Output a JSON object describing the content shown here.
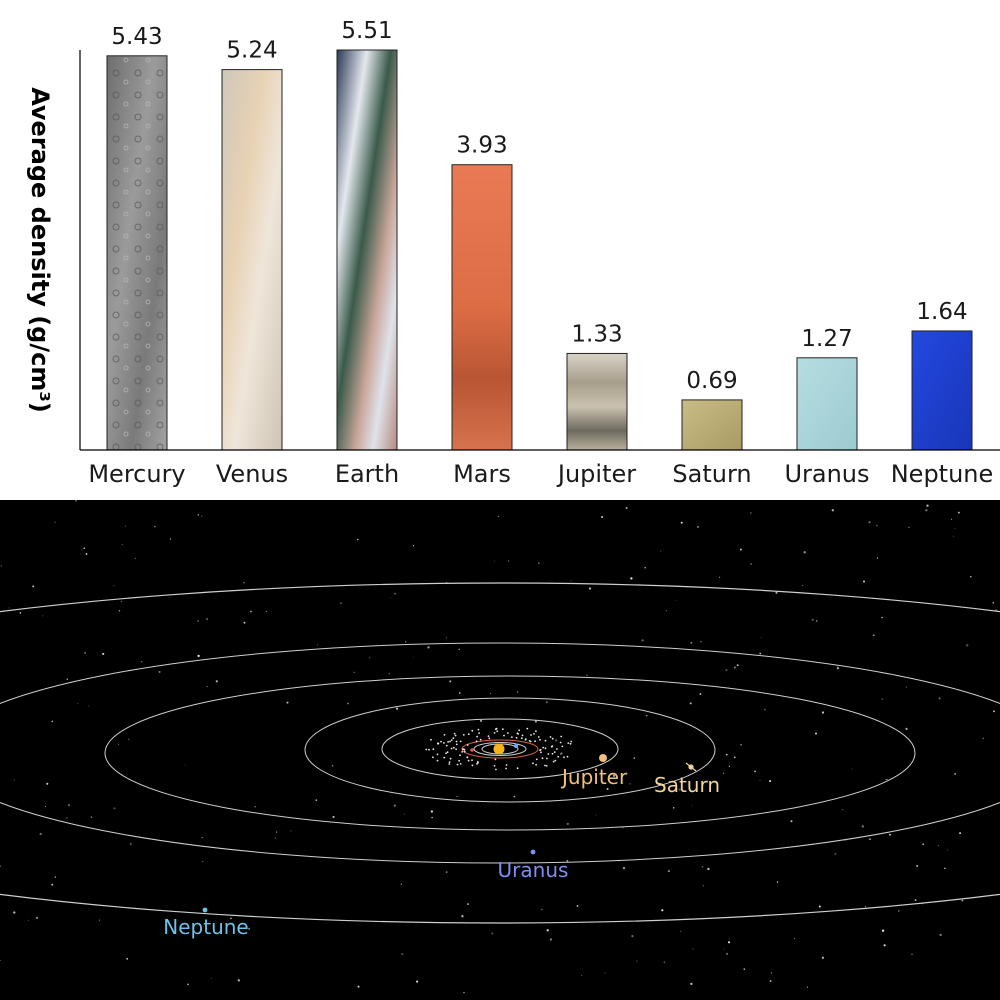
{
  "chart_data": {
    "type": "bar",
    "title": "",
    "xlabel": "",
    "ylabel": "Average density (g/cm³)",
    "categories": [
      "Mercury",
      "Venus",
      "Earth",
      "Mars",
      "Jupiter",
      "Saturn",
      "Uranus",
      "Neptune"
    ],
    "values": [
      5.43,
      5.24,
      5.51,
      3.93,
      1.33,
      0.69,
      1.27,
      1.64
    ],
    "value_labels": [
      "5.43",
      "5.24",
      "5.51",
      "3.93",
      "1.33",
      "0.69",
      "1.27",
      "1.64"
    ],
    "ylim": [
      0,
      5.51
    ],
    "grid": false,
    "bar_colors": [
      "#8c8c8c",
      "#e3d6c2",
      "#6d7e9a",
      "#d9704a",
      "#9a8f7c",
      "#b7ab72",
      "#a9d1d6",
      "#1f3fd0"
    ]
  },
  "orbit_diagram": {
    "labels": [
      {
        "name": "Jupiter",
        "color": "#f0c07a"
      },
      {
        "name": "Saturn",
        "color": "#f2d4a0"
      },
      {
        "name": "Uranus",
        "color": "#7f8ff0"
      },
      {
        "name": "Neptune",
        "color": "#6fc2e8"
      }
    ],
    "sun_color": "#f4b41a",
    "orbit_color": "#cfcfcf"
  }
}
